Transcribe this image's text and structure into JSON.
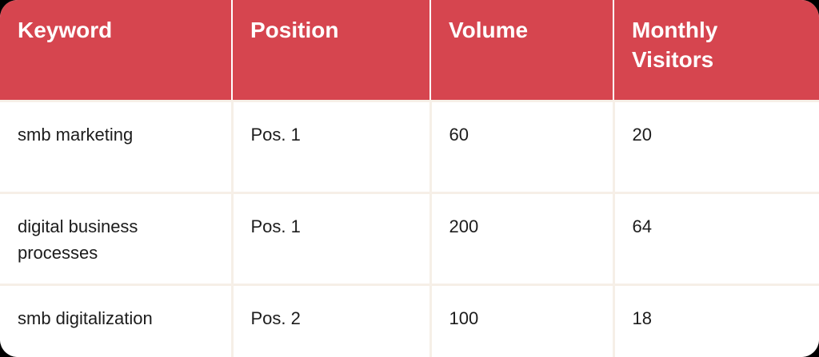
{
  "chart_data": {
    "type": "table",
    "columns": [
      "Keyword",
      "Position",
      "Volume",
      "Monthly Visitors"
    ],
    "rows": [
      [
        "smb marketing",
        "Pos. 1",
        "60",
        "20"
      ],
      [
        "digital business processes",
        "Pos. 1",
        "200",
        "64"
      ],
      [
        "smb digitalization",
        "Pos. 2",
        "100",
        "18"
      ]
    ]
  },
  "colors": {
    "header_bg": "#d6454f",
    "header_text": "#ffffff",
    "header_divider": "#ffffff",
    "body_bg": "#ffffff",
    "body_text": "#1c1c1c",
    "body_divider": "#f6efe7",
    "outside_corners": "#000000"
  }
}
